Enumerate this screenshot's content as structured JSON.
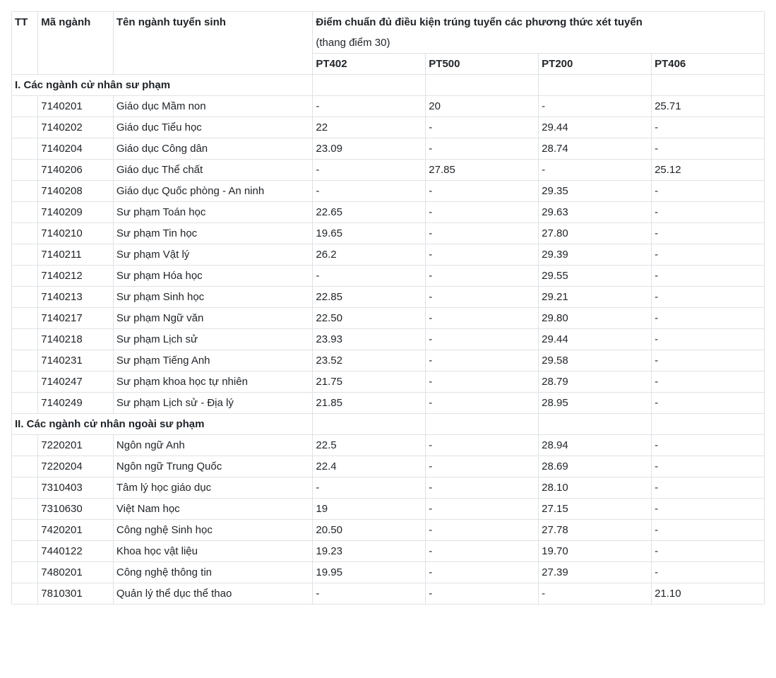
{
  "table": {
    "headers": {
      "tt": "TT",
      "code": "Mã ngành",
      "name": "Tên ngành tuyển sinh",
      "score_group": "Điểm chuẩn đủ điều kiện trúng tuyển các phương thức xét tuyển",
      "score_note": "(thang điểm 30)",
      "pt402": "PT402",
      "pt500": "PT500",
      "pt200": "PT200",
      "pt406": "PT406"
    },
    "section1_title": "I. Các ngành cử nhân sư phạm",
    "section1_rows": [
      {
        "code": "7140201",
        "name": "Giáo dục Mầm non",
        "pt402": "-",
        "pt500": "20",
        "pt200": "-",
        "pt406": "25.71"
      },
      {
        "code": "7140202",
        "name": "Giáo dục Tiểu học",
        "pt402": "22",
        "pt500": "-",
        "pt200": "29.44",
        "pt406": "-"
      },
      {
        "code": "7140204",
        "name": "Giáo dục Công dân",
        "pt402": "23.09",
        "pt500": "-",
        "pt200": "28.74",
        "pt406": "-"
      },
      {
        "code": "7140206",
        "name": "Giáo dục Thể chất",
        "pt402": "-",
        "pt500": "27.85",
        "pt200": "-",
        "pt406": "25.12"
      },
      {
        "code": "7140208",
        "name": "Giáo dục Quốc phòng - An ninh",
        "pt402": "-",
        "pt500": "-",
        "pt200": "29.35",
        "pt406": "-"
      },
      {
        "code": "7140209",
        "name": "Sư phạm Toán học",
        "pt402": "22.65",
        "pt500": "-",
        "pt200": "29.63",
        "pt406": "-"
      },
      {
        "code": "7140210",
        "name": "Sư phạm Tin học",
        "pt402": "19.65",
        "pt500": "-",
        "pt200": "27.80",
        "pt406": "-"
      },
      {
        "code": "7140211",
        "name": "Sư phạm Vật lý",
        "pt402": "26.2",
        "pt500": "-",
        "pt200": "29.39",
        "pt406": "-"
      },
      {
        "code": "7140212",
        "name": "Sư phạm Hóa học",
        "pt402": "-",
        "pt500": "-",
        "pt200": "29.55",
        "pt406": "-"
      },
      {
        "code": "7140213",
        "name": "Sư phạm Sinh học",
        "pt402": "22.85",
        "pt500": "-",
        "pt200": "29.21",
        "pt406": "-"
      },
      {
        "code": "7140217",
        "name": "Sư phạm Ngữ văn",
        "pt402": "22.50",
        "pt500": "-",
        "pt200": "29.80",
        "pt406": "-"
      },
      {
        "code": "7140218",
        "name": "Sư phạm Lịch sử",
        "pt402": "23.93",
        "pt500": "-",
        "pt200": "29.44",
        "pt406": "-"
      },
      {
        "code": "7140231",
        "name": "Sư phạm Tiếng Anh",
        "pt402": "23.52",
        "pt500": "-",
        "pt200": "29.58",
        "pt406": "-"
      },
      {
        "code": "7140247",
        "name": "Sư phạm khoa học tự nhiên",
        "pt402": "21.75",
        "pt500": "-",
        "pt200": "28.79",
        "pt406": "-"
      },
      {
        "code": "7140249",
        "name": "Sư phạm Lịch sử - Địa lý",
        "pt402": "21.85",
        "pt500": "-",
        "pt200": "28.95",
        "pt406": "-"
      }
    ],
    "section2_title": "II. Các ngành cử nhân ngoài sư phạm",
    "section2_rows": [
      {
        "code": "7220201",
        "name": "Ngôn ngữ Anh",
        "pt402": "22.5",
        "pt500": "-",
        "pt200": "28.94",
        "pt406": "-"
      },
      {
        "code": "7220204",
        "name": "Ngôn ngữ Trung Quốc",
        "pt402": "22.4",
        "pt500": "-",
        "pt200": "28.69",
        "pt406": "-"
      },
      {
        "code": "7310403",
        "name": "Tâm lý học giáo dục",
        "pt402": "-",
        "pt500": "-",
        "pt200": "28.10",
        "pt406": "-"
      },
      {
        "code": "7310630",
        "name": "Việt Nam học",
        "pt402": "19",
        "pt500": "-",
        "pt200": "27.15",
        "pt406": "-"
      },
      {
        "code": "7420201",
        "name": "Công nghệ Sinh học",
        "pt402": "20.50",
        "pt500": "-",
        "pt200": "27.78",
        "pt406": "-"
      },
      {
        "code": "7440122",
        "name": "Khoa học vật liệu",
        "pt402": "19.23",
        "pt500": "-",
        "pt200": "19.70",
        "pt406": "-"
      },
      {
        "code": "7480201",
        "name": "Công nghệ thông tin",
        "pt402": "19.95",
        "pt500": "-",
        "pt200": "27.39",
        "pt406": "-"
      },
      {
        "code": "7810301",
        "name": "Quản lý thể dục thể thao",
        "pt402": "-",
        "pt500": "-",
        "pt200": "-",
        "pt406": "21.10"
      }
    ],
    "styling": {
      "font_family": "Arial",
      "font_size_pt": 11,
      "border_color": "#dee2e6",
      "text_color": "#212529",
      "background_color": "#ffffff",
      "header_font_weight": "bold",
      "col_widths_percent": {
        "tt": 3.5,
        "code": 10,
        "name": 26.5,
        "pt_each": 15
      }
    }
  }
}
